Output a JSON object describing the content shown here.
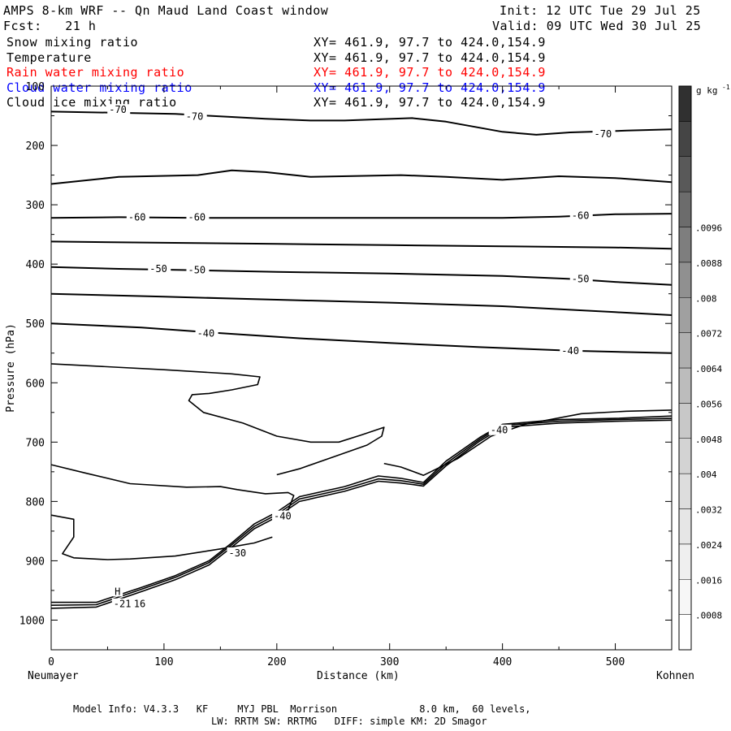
{
  "header": {
    "title": "AMPS 8-km WRF -- Qn Maud Land Coast window",
    "init": "Init: 12 UTC Tue 29 Jul 25",
    "fcst": "Fcst:   21 h",
    "valid": "Valid: 09 UTC Wed 30 Jul 25"
  },
  "fields": [
    {
      "name": "Snow mixing ratio",
      "xy": "XY= 461.9, 97.7 to 424.0,154.9",
      "color": "#000000"
    },
    {
      "name": "Temperature",
      "xy": "XY= 461.9, 97.7 to 424.0,154.9",
      "color": "#000000"
    },
    {
      "name": "Rain water mixing ratio",
      "xy": "XY= 461.9, 97.7 to 424.0,154.9",
      "color": "#ff0000"
    },
    {
      "name": "Cloud water mixing ratio",
      "xy": "XY= 461.9, 97.7 to 424.0,154.9",
      "color": "#0000ff"
    },
    {
      "name": "Cloud ice mixing ratio",
      "xy": "XY= 461.9, 97.7 to 424.0,154.9",
      "color": "#000000"
    }
  ],
  "footer": {
    "line1": "Model Info: V4.3.3   KF     MYJ PBL  Morrison              8.0 km,  60 levels,",
    "line2": "LW: RRTM SW: RRTMG   DIFF: simple KM: 2D Smagor"
  },
  "chart_data": {
    "type": "contour",
    "xlabel": "Distance (km)",
    "ylabel": "Pressure (hPa)",
    "x_left_label": "Neumayer",
    "x_right_label": "Kohnen",
    "xlim": [
      0,
      550
    ],
    "ylim": [
      1050,
      100
    ],
    "x_ticks": [
      0,
      100,
      200,
      300,
      400,
      500
    ],
    "y_ticks": [
      100,
      200,
      300,
      400,
      500,
      600,
      700,
      800,
      900,
      1000
    ],
    "colorbar": {
      "unit": "g kg",
      "unit_exponent": "-1",
      "tick_labels": [
        ".0008",
        ".0016",
        ".0024",
        ".0032",
        ".004",
        ".0048",
        ".0056",
        ".0064",
        ".0072",
        ".008",
        ".0088",
        ".0096"
      ],
      "colors": [
        "#ffffff",
        "#f7f7f7",
        "#efefef",
        "#e6e6e6",
        "#dddddd",
        "#d3d3d3",
        "#c8c8c8",
        "#bcbcbc",
        "#afafaf",
        "#a0a0a0",
        "#909090",
        "#7e7e7e",
        "#6c6c6c",
        "#595959",
        "#454545",
        "#303030"
      ]
    },
    "isotherms": [
      {
        "label": "-70",
        "points": [
          [
            0,
            143
          ],
          [
            60,
            145
          ],
          [
            110,
            147
          ],
          [
            160,
            152
          ],
          [
            190,
            155
          ],
          [
            230,
            158
          ],
          [
            260,
            158
          ],
          [
            320,
            154
          ],
          [
            350,
            160
          ],
          [
            400,
            177
          ],
          [
            430,
            182
          ],
          [
            460,
            178
          ],
          [
            510,
            175
          ],
          [
            550,
            173
          ]
        ]
      },
      {
        "label": "",
        "points": [
          [
            0,
            265
          ],
          [
            60,
            253
          ],
          [
            130,
            250
          ],
          [
            160,
            242
          ],
          [
            190,
            245
          ],
          [
            230,
            253
          ],
          [
            310,
            250
          ],
          [
            350,
            253
          ],
          [
            400,
            258
          ],
          [
            450,
            252
          ],
          [
            500,
            255
          ],
          [
            550,
            262
          ]
        ]
      },
      {
        "label": "-60",
        "points": [
          [
            0,
            322
          ],
          [
            60,
            321
          ],
          [
            130,
            322
          ],
          [
            200,
            322
          ],
          [
            300,
            322
          ],
          [
            400,
            322
          ],
          [
            450,
            320
          ],
          [
            500,
            316
          ],
          [
            550,
            315
          ]
        ]
      },
      {
        "label": "",
        "points": [
          [
            0,
            362
          ],
          [
            100,
            364
          ],
          [
            200,
            366
          ],
          [
            300,
            368
          ],
          [
            400,
            370
          ],
          [
            500,
            372
          ],
          [
            550,
            374
          ]
        ]
      },
      {
        "label": "-50",
        "points": [
          [
            0,
            405
          ],
          [
            60,
            408
          ],
          [
            120,
            410
          ],
          [
            200,
            413
          ],
          [
            300,
            416
          ],
          [
            400,
            420
          ],
          [
            460,
            425
          ],
          [
            500,
            430
          ],
          [
            550,
            435
          ]
        ]
      },
      {
        "label": "",
        "points": [
          [
            0,
            450
          ],
          [
            100,
            455
          ],
          [
            200,
            460
          ],
          [
            300,
            465
          ],
          [
            400,
            471
          ],
          [
            500,
            481
          ],
          [
            550,
            486
          ]
        ]
      },
      {
        "label": "-40",
        "points": [
          [
            0,
            500
          ],
          [
            80,
            507
          ],
          [
            140,
            515
          ],
          [
            220,
            525
          ],
          [
            300,
            533
          ],
          [
            380,
            540
          ],
          [
            460,
            546
          ],
          [
            550,
            550
          ]
        ]
      }
    ],
    "text_labels": [
      {
        "text": "-70",
        "x": 52,
        "y": 140
      },
      {
        "text": "-70",
        "x": 120,
        "y": 151
      },
      {
        "text": "-70",
        "x": 482,
        "y": 181
      },
      {
        "text": "-60",
        "x": 69,
        "y": 321
      },
      {
        "text": "-60",
        "x": 122,
        "y": 321
      },
      {
        "text": "-60",
        "x": 462,
        "y": 318
      },
      {
        "text": "-50",
        "x": 88,
        "y": 408
      },
      {
        "text": "-50",
        "x": 122,
        "y": 410
      },
      {
        "text": "-50",
        "x": 462,
        "y": 425
      },
      {
        "text": "-40",
        "x": 130,
        "y": 517
      },
      {
        "text": "-40",
        "x": 453,
        "y": 546
      },
      {
        "text": "-40",
        "x": 390,
        "y": 680
      },
      {
        "text": "-40",
        "x": 198,
        "y": 825
      },
      {
        "text": "-30",
        "x": 158,
        "y": 887
      },
      {
        "text": "H",
        "x": 57,
        "y": 952
      },
      {
        "text": "-21",
        "x": 56,
        "y": 973
      },
      {
        "text": "16",
        "x": 74,
        "y": 973
      }
    ],
    "terrain_lines": [
      [
        [
          0,
          970
        ],
        [
          40,
          970
        ],
        [
          80,
          945
        ],
        [
          110,
          925
        ],
        [
          140,
          900
        ],
        [
          160,
          870
        ],
        [
          180,
          838
        ],
        [
          200,
          818
        ],
        [
          220,
          792
        ],
        [
          260,
          775
        ],
        [
          290,
          757
        ],
        [
          310,
          761
        ],
        [
          330,
          768
        ],
        [
          350,
          732
        ],
        [
          380,
          692
        ],
        [
          400,
          670
        ],
        [
          450,
          662
        ],
        [
          500,
          660
        ],
        [
          550,
          656
        ]
      ],
      [
        [
          0,
          975
        ],
        [
          40,
          974
        ],
        [
          80,
          948
        ],
        [
          110,
          928
        ],
        [
          140,
          903
        ],
        [
          160,
          873
        ],
        [
          180,
          842
        ],
        [
          200,
          822
        ],
        [
          220,
          796
        ],
        [
          260,
          779
        ],
        [
          290,
          762
        ],
        [
          310,
          765
        ],
        [
          330,
          771
        ],
        [
          350,
          736
        ],
        [
          380,
          695
        ],
        [
          400,
          672
        ],
        [
          450,
          665
        ],
        [
          500,
          662
        ],
        [
          550,
          660
        ]
      ],
      [
        [
          0,
          980
        ],
        [
          40,
          978
        ],
        [
          80,
          952
        ],
        [
          110,
          932
        ],
        [
          140,
          907
        ],
        [
          160,
          877
        ],
        [
          180,
          846
        ],
        [
          200,
          826
        ],
        [
          220,
          800
        ],
        [
          260,
          783
        ],
        [
          290,
          766
        ],
        [
          310,
          769
        ],
        [
          330,
          774
        ],
        [
          350,
          740
        ],
        [
          380,
          698
        ],
        [
          400,
          675
        ],
        [
          450,
          668
        ],
        [
          500,
          665
        ],
        [
          550,
          663
        ]
      ]
    ],
    "contour_paths": [
      [
        [
          0,
          568
        ],
        [
          40,
          572
        ],
        [
          100,
          578
        ],
        [
          160,
          585
        ],
        [
          185,
          590
        ],
        [
          183,
          603
        ],
        [
          160,
          612
        ],
        [
          140,
          618
        ],
        [
          125,
          620
        ],
        [
          122,
          630
        ],
        [
          135,
          650
        ],
        [
          170,
          668
        ],
        [
          200,
          690
        ],
        [
          230,
          700
        ],
        [
          255,
          700
        ],
        [
          275,
          688
        ],
        [
          295,
          675
        ],
        [
          293,
          690
        ],
        [
          280,
          705
        ],
        [
          250,
          725
        ],
        [
          220,
          745
        ],
        [
          200,
          755
        ]
      ],
      [
        [
          0,
          738
        ],
        [
          30,
          752
        ],
        [
          70,
          770
        ],
        [
          120,
          776
        ],
        [
          150,
          775
        ],
        [
          165,
          780
        ],
        [
          190,
          787
        ],
        [
          210,
          785
        ],
        [
          215,
          790
        ],
        [
          210,
          815
        ]
      ],
      [
        [
          0,
          823
        ],
        [
          20,
          830
        ],
        [
          20,
          860
        ],
        [
          10,
          888
        ],
        [
          20,
          895
        ],
        [
          50,
          898
        ],
        [
          70,
          897
        ],
        [
          110,
          892
        ],
        [
          150,
          880
        ],
        [
          180,
          870
        ],
        [
          196,
          860
        ]
      ],
      [
        [
          295,
          736
        ],
        [
          310,
          742
        ],
        [
          330,
          756
        ],
        [
          360,
          728
        ],
        [
          390,
          690
        ],
        [
          420,
          670
        ],
        [
          470,
          652
        ],
        [
          510,
          648
        ],
        [
          550,
          646
        ]
      ]
    ]
  }
}
